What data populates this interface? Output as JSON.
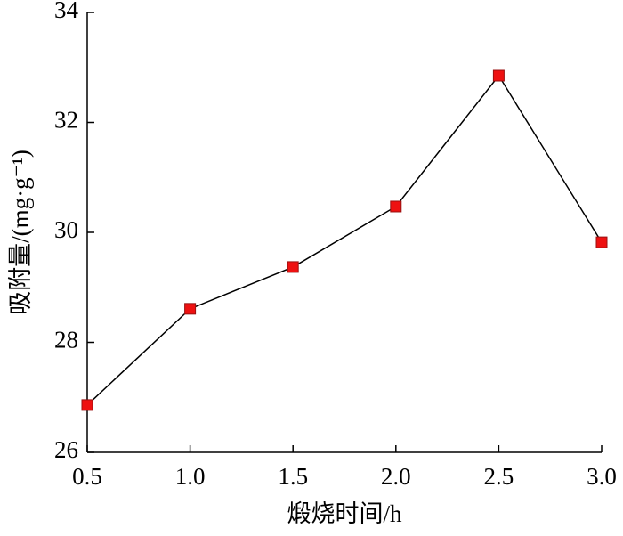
{
  "chart_data": {
    "type": "line",
    "x_label": "煅烧时间/h",
    "y_label": "吸附量/(mg·g⁻¹)",
    "x": [
      0.5,
      1.0,
      1.5,
      2.0,
      2.5,
      3.0
    ],
    "series": [
      {
        "color": "#ee1111",
        "values": [
          26.86,
          28.61,
          29.37,
          30.47,
          32.85,
          29.82
        ]
      }
    ],
    "xlim": [
      0.5,
      3.0
    ],
    "xticks": [
      0.5,
      {
        "value": 1.0,
        "label": "1.0"
      },
      1.5,
      {
        "value": 2.0,
        "label": "2.0"
      },
      2.5,
      {
        "value": 3.0,
        "label": "3.0"
      }
    ],
    "ylim": [
      26,
      34
    ],
    "yticks": [
      26,
      28,
      30,
      32,
      34
    ]
  }
}
